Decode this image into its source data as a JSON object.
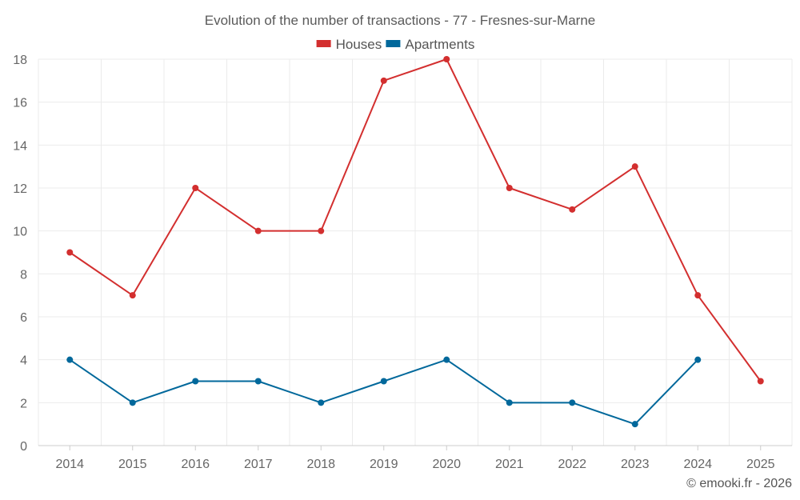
{
  "chart_data": {
    "type": "line",
    "title": "Evolution of the number of transactions - 77 - Fresnes-sur-Marne",
    "xlabel": "",
    "ylabel": "",
    "categories": [
      "2014",
      "2015",
      "2016",
      "2017",
      "2018",
      "2019",
      "2020",
      "2021",
      "2022",
      "2023",
      "2024",
      "2025"
    ],
    "ylim": [
      0,
      18
    ],
    "yticks": [
      0,
      2,
      4,
      6,
      8,
      10,
      12,
      14,
      16,
      18
    ],
    "grid": true,
    "legend_position": "top-center",
    "series": [
      {
        "name": "Houses",
        "color": "#d32f2f",
        "values": [
          9,
          7,
          12,
          10,
          10,
          17,
          18,
          12,
          11,
          13,
          7,
          3
        ]
      },
      {
        "name": "Apartments",
        "color": "#01689b",
        "values": [
          4,
          2,
          3,
          3,
          2,
          3,
          4,
          2,
          2,
          1,
          4,
          null
        ]
      }
    ]
  },
  "credit": "© emooki.fr - 2026"
}
